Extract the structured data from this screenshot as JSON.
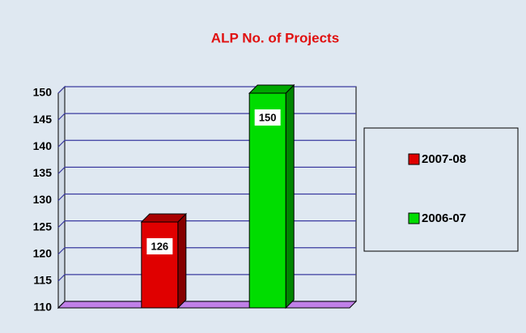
{
  "chart_data": {
    "type": "bar",
    "title": "ALP No. of Projects",
    "categories": [
      null
    ],
    "series": [
      {
        "name": "2007-08",
        "color": "#e00000",
        "values": [
          126
        ]
      },
      {
        "name": "2006-07",
        "color": "#00dd00",
        "values": [
          150
        ]
      }
    ],
    "ylim": [
      110,
      150
    ],
    "yticks": [
      110,
      115,
      120,
      125,
      130,
      135,
      140,
      145,
      150
    ],
    "grid": true,
    "legend": "right"
  }
}
